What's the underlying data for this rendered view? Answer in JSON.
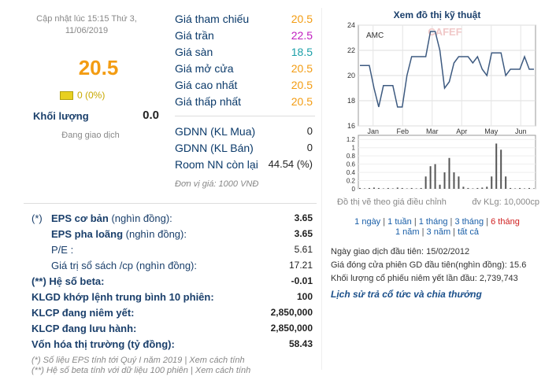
{
  "header": {
    "updated": "Cập nhật lúc 15:15 Thứ 3, 11/06/2019",
    "price": 20.5,
    "change": "0 (0%)",
    "volume_label": "Khối lượng",
    "volume": "0.0",
    "status": "Đang giao dịch"
  },
  "prices": [
    {
      "label": "Giá tham chiếu",
      "value": "20.5",
      "color": "#f39c12"
    },
    {
      "label": "Giá trần",
      "value": "22.5",
      "color": "#c020c0"
    },
    {
      "label": "Giá sàn",
      "value": "18.5",
      "color": "#1a9fa8"
    },
    {
      "label": "Giá mở cửa",
      "value": "20.5",
      "color": "#f39c12"
    },
    {
      "label": "Giá cao nhất",
      "value": "20.5",
      "color": "#f39c12"
    },
    {
      "label": "Giá thấp nhất",
      "value": "20.5",
      "color": "#f39c12"
    }
  ],
  "foreign": [
    {
      "label": "GDNN (KL Mua)",
      "value": "0"
    },
    {
      "label": "GDNN (KL Bán)",
      "value": "0"
    },
    {
      "label": "Room NN còn lại",
      "value": "44.54 (%)"
    }
  ],
  "unit_note": "Đơn vị giá: 1000 VNĐ",
  "stats": [
    {
      "prefix": "(*)",
      "label": "EPS cơ bản",
      "unit": "(nghìn đồng):",
      "value": "3.65",
      "bold": true
    },
    {
      "label": "EPS pha loãng",
      "unit": "(nghìn đồng):",
      "value": "3.65",
      "bold": true
    },
    {
      "label": "P/E :",
      "value": "5.61",
      "bold": false
    },
    {
      "label": "Giá trị sổ sách /cp (nghìn đồng):",
      "value": "17.21",
      "bold": false
    },
    {
      "label": "(**) Hệ số beta:",
      "value": "-0.01",
      "bold": true
    },
    {
      "label": "KLGD khớp lệnh trung bình 10 phiên:",
      "value": "100",
      "bold": true
    },
    {
      "label": "KLCP đang niêm yết:",
      "value": "2,850,000",
      "bold": true
    },
    {
      "label": "KLCP đang lưu hành:",
      "value": "2,850,000",
      "bold": true
    },
    {
      "label": "Vốn hóa thị trường (tỷ đồng):",
      "value": "58.43",
      "bold": true
    }
  ],
  "footnotes": [
    "(*) Số liệu EPS tính tới Quý I năm 2019 | Xem cách tính",
    "(**) Hệ số beta tính với dữ liệu 100 phiên | Xem cách tính"
  ],
  "chart": {
    "type": "line",
    "title": "Xem đồ thị kỹ thuật",
    "symbol": "AMC",
    "watermark": "CAFEF",
    "color": "#3d5a80",
    "bar_color": "#555",
    "ylim": [
      16,
      24
    ],
    "yticks": [
      16,
      18,
      20,
      22,
      24
    ],
    "months": [
      "Jan",
      "Feb",
      "Mar",
      "Apr",
      "May",
      "Jun"
    ],
    "values": [
      20.8,
      20.8,
      20.8,
      19,
      17.5,
      19.2,
      19.2,
      19.2,
      17.5,
      17.5,
      20,
      21.5,
      21.5,
      21.5,
      21.5,
      23.5,
      23.5,
      22,
      19,
      19.5,
      21,
      21.5,
      21.5,
      21.5,
      21,
      21.5,
      20.5,
      20,
      21.8,
      21.8,
      21.8,
      20,
      20.5,
      20.5,
      20.5,
      21.5,
      20.5,
      20.5
    ],
    "volume_ylim": [
      0,
      1.3
    ],
    "volume_yticks": [
      0,
      0.2,
      0.4,
      0.6,
      0.8,
      1,
      1.2
    ],
    "volumes": [
      0.02,
      0.01,
      0.02,
      0.03,
      0.02,
      0.01,
      0.02,
      0.01,
      0.03,
      0.02,
      0.01,
      0.02,
      0.01,
      0.02,
      0.3,
      0.55,
      0.6,
      0.1,
      0.4,
      0.75,
      0.4,
      0.3,
      0.05,
      0.02,
      0.01,
      0.02,
      0.03,
      0.05,
      0.3,
      1.1,
      0.95,
      0.3,
      0.02,
      0.01,
      0.02,
      0.01,
      0.02,
      0.01
    ]
  },
  "chart_note": "Đồ thị vẽ theo giá điều chỉnh",
  "volume_unit": "đv KLg: 10,000cp",
  "periods": [
    [
      "1 ngày",
      "1 tuần",
      "1 tháng",
      "3 tháng",
      "6 tháng"
    ],
    [
      "1 năm",
      "3 năm",
      "tất cả"
    ]
  ],
  "active_period": [
    0,
    4
  ],
  "info": [
    "Ngày giao dịch đầu tiên: 15/02/2012",
    "Giá đóng cửa phiên GD đầu tiên(nghìn đồng): 15.6",
    "Khối lượng cổ phiếu niêm yết lần đầu: 2,739,743"
  ],
  "dividend_link": "Lịch sử trả cổ tức và chia thưởng"
}
